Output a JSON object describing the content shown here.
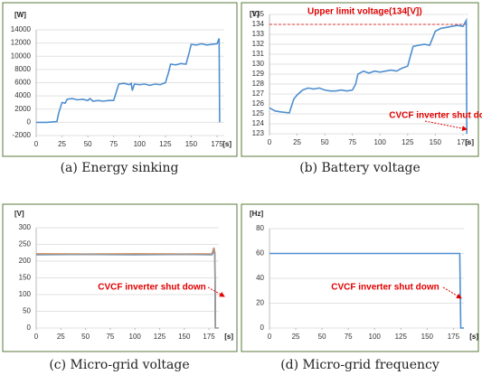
{
  "chart_data": [
    {
      "type": "line",
      "caption": "(a) Energy sinking",
      "y_label": "[W]",
      "x_label": "[s]",
      "xlim": [
        0,
        182
      ],
      "xticks": [
        0,
        25,
        50,
        75,
        100,
        125,
        150,
        175
      ],
      "ylim": [
        -2000,
        14000
      ],
      "yticks": [
        -2000,
        0,
        2000,
        4000,
        6000,
        8000,
        10000,
        12000,
        14000
      ],
      "grid": true,
      "series": [
        {
          "color": "#4f8fcf",
          "x": [
            0,
            10,
            20,
            22,
            25,
            28,
            30,
            35,
            40,
            45,
            50,
            52,
            55,
            60,
            65,
            70,
            75,
            78,
            80,
            85,
            90,
            92,
            93,
            95,
            100,
            105,
            110,
            115,
            120,
            125,
            128,
            130,
            135,
            140,
            145,
            148,
            150,
            155,
            160,
            165,
            170,
            175,
            177,
            177.5
          ],
          "values": [
            0,
            0,
            100,
            1500,
            3000,
            2900,
            3500,
            3600,
            3400,
            3500,
            3300,
            3600,
            3200,
            3300,
            3200,
            3300,
            3300,
            4800,
            5800,
            5900,
            5700,
            5900,
            4800,
            5800,
            5700,
            5800,
            5600,
            5800,
            5700,
            6000,
            7500,
            8800,
            8700,
            8900,
            8800,
            10500,
            11800,
            11700,
            11900,
            11700,
            11800,
            11900,
            12700,
            0
          ]
        }
      ]
    },
    {
      "type": "line",
      "caption": "(b) Battery voltage",
      "y_label": "[V]",
      "x_label": "[s]",
      "xlim": [
        0,
        180
      ],
      "xticks": [
        0,
        25,
        50,
        75,
        100,
        125,
        150,
        175
      ],
      "ylim": [
        123,
        135
      ],
      "yticks": [
        123,
        124,
        125,
        126,
        127,
        128,
        129,
        130,
        131,
        132,
        133,
        134,
        135
      ],
      "grid": true,
      "ref_line": {
        "value": 134,
        "label": "Upper limit voltage(134[V])",
        "color": "#e00000"
      },
      "annotation": "CVCF inverter shut down",
      "series": [
        {
          "color": "#4f8fcf",
          "x": [
            0,
            5,
            10,
            18,
            22,
            25,
            30,
            35,
            40,
            45,
            50,
            55,
            60,
            65,
            70,
            75,
            78,
            80,
            85,
            90,
            95,
            100,
            105,
            110,
            115,
            120,
            125,
            128,
            130,
            135,
            140,
            145,
            150,
            155,
            160,
            165,
            170,
            175,
            178,
            178.5
          ],
          "values": [
            125.6,
            125.3,
            125.2,
            125.1,
            126.5,
            126.9,
            127.4,
            127.6,
            127.5,
            127.6,
            127.4,
            127.3,
            127.3,
            127.4,
            127.3,
            127.4,
            128.0,
            129.0,
            129.3,
            129.1,
            129.3,
            129.2,
            129.3,
            129.4,
            129.3,
            129.6,
            129.8,
            131.0,
            131.8,
            131.9,
            132.0,
            131.9,
            133.3,
            133.6,
            133.7,
            133.8,
            133.9,
            133.8,
            134.4,
            123
          ]
        }
      ]
    },
    {
      "type": "line",
      "caption": "(c) Micro-grid voltage",
      "y_label": "[V]",
      "x_label": "[s]",
      "xlim": [
        0,
        185
      ],
      "xticks": [
        0,
        25,
        50,
        75,
        100,
        125,
        150,
        175
      ],
      "ylim": [
        0,
        300
      ],
      "yticks": [
        0,
        50,
        100,
        150,
        200,
        250,
        300
      ],
      "grid": true,
      "annotation": "CVCF inverter shut down",
      "series": [
        {
          "color": "#ed7d31",
          "x": [
            0,
            50,
            100,
            150,
            178,
            180,
            181,
            181.5
          ],
          "values": [
            222,
            221,
            222,
            221,
            222,
            240,
            225,
            0
          ]
        },
        {
          "color": "#4f8fcf",
          "x": [
            0,
            50,
            100,
            150,
            178,
            180,
            181,
            181.5
          ],
          "values": [
            219,
            220,
            219,
            220,
            219,
            230,
            220,
            0
          ]
        },
        {
          "color": "#999999",
          "x": [
            0,
            50,
            100,
            150,
            178,
            180,
            181,
            181.5,
            185
          ],
          "values": [
            220,
            220,
            220,
            220,
            220,
            235,
            222,
            0,
            0
          ]
        }
      ]
    },
    {
      "type": "line",
      "caption": "(d) Micro-grid frequency",
      "y_label": "[Hz]",
      "x_label": "[s]",
      "xlim": [
        0,
        185
      ],
      "xticks": [
        0,
        25,
        50,
        75,
        100,
        125,
        150,
        175
      ],
      "ylim": [
        0,
        80
      ],
      "yticks": [
        0,
        20,
        40,
        60,
        80
      ],
      "grid": true,
      "annotation": "CVCF inverter shut down",
      "series": [
        {
          "color": "#4f8fcf",
          "x": [
            0,
            100,
            181,
            182,
            185
          ],
          "values": [
            60,
            60,
            60,
            0,
            0
          ]
        }
      ]
    }
  ]
}
